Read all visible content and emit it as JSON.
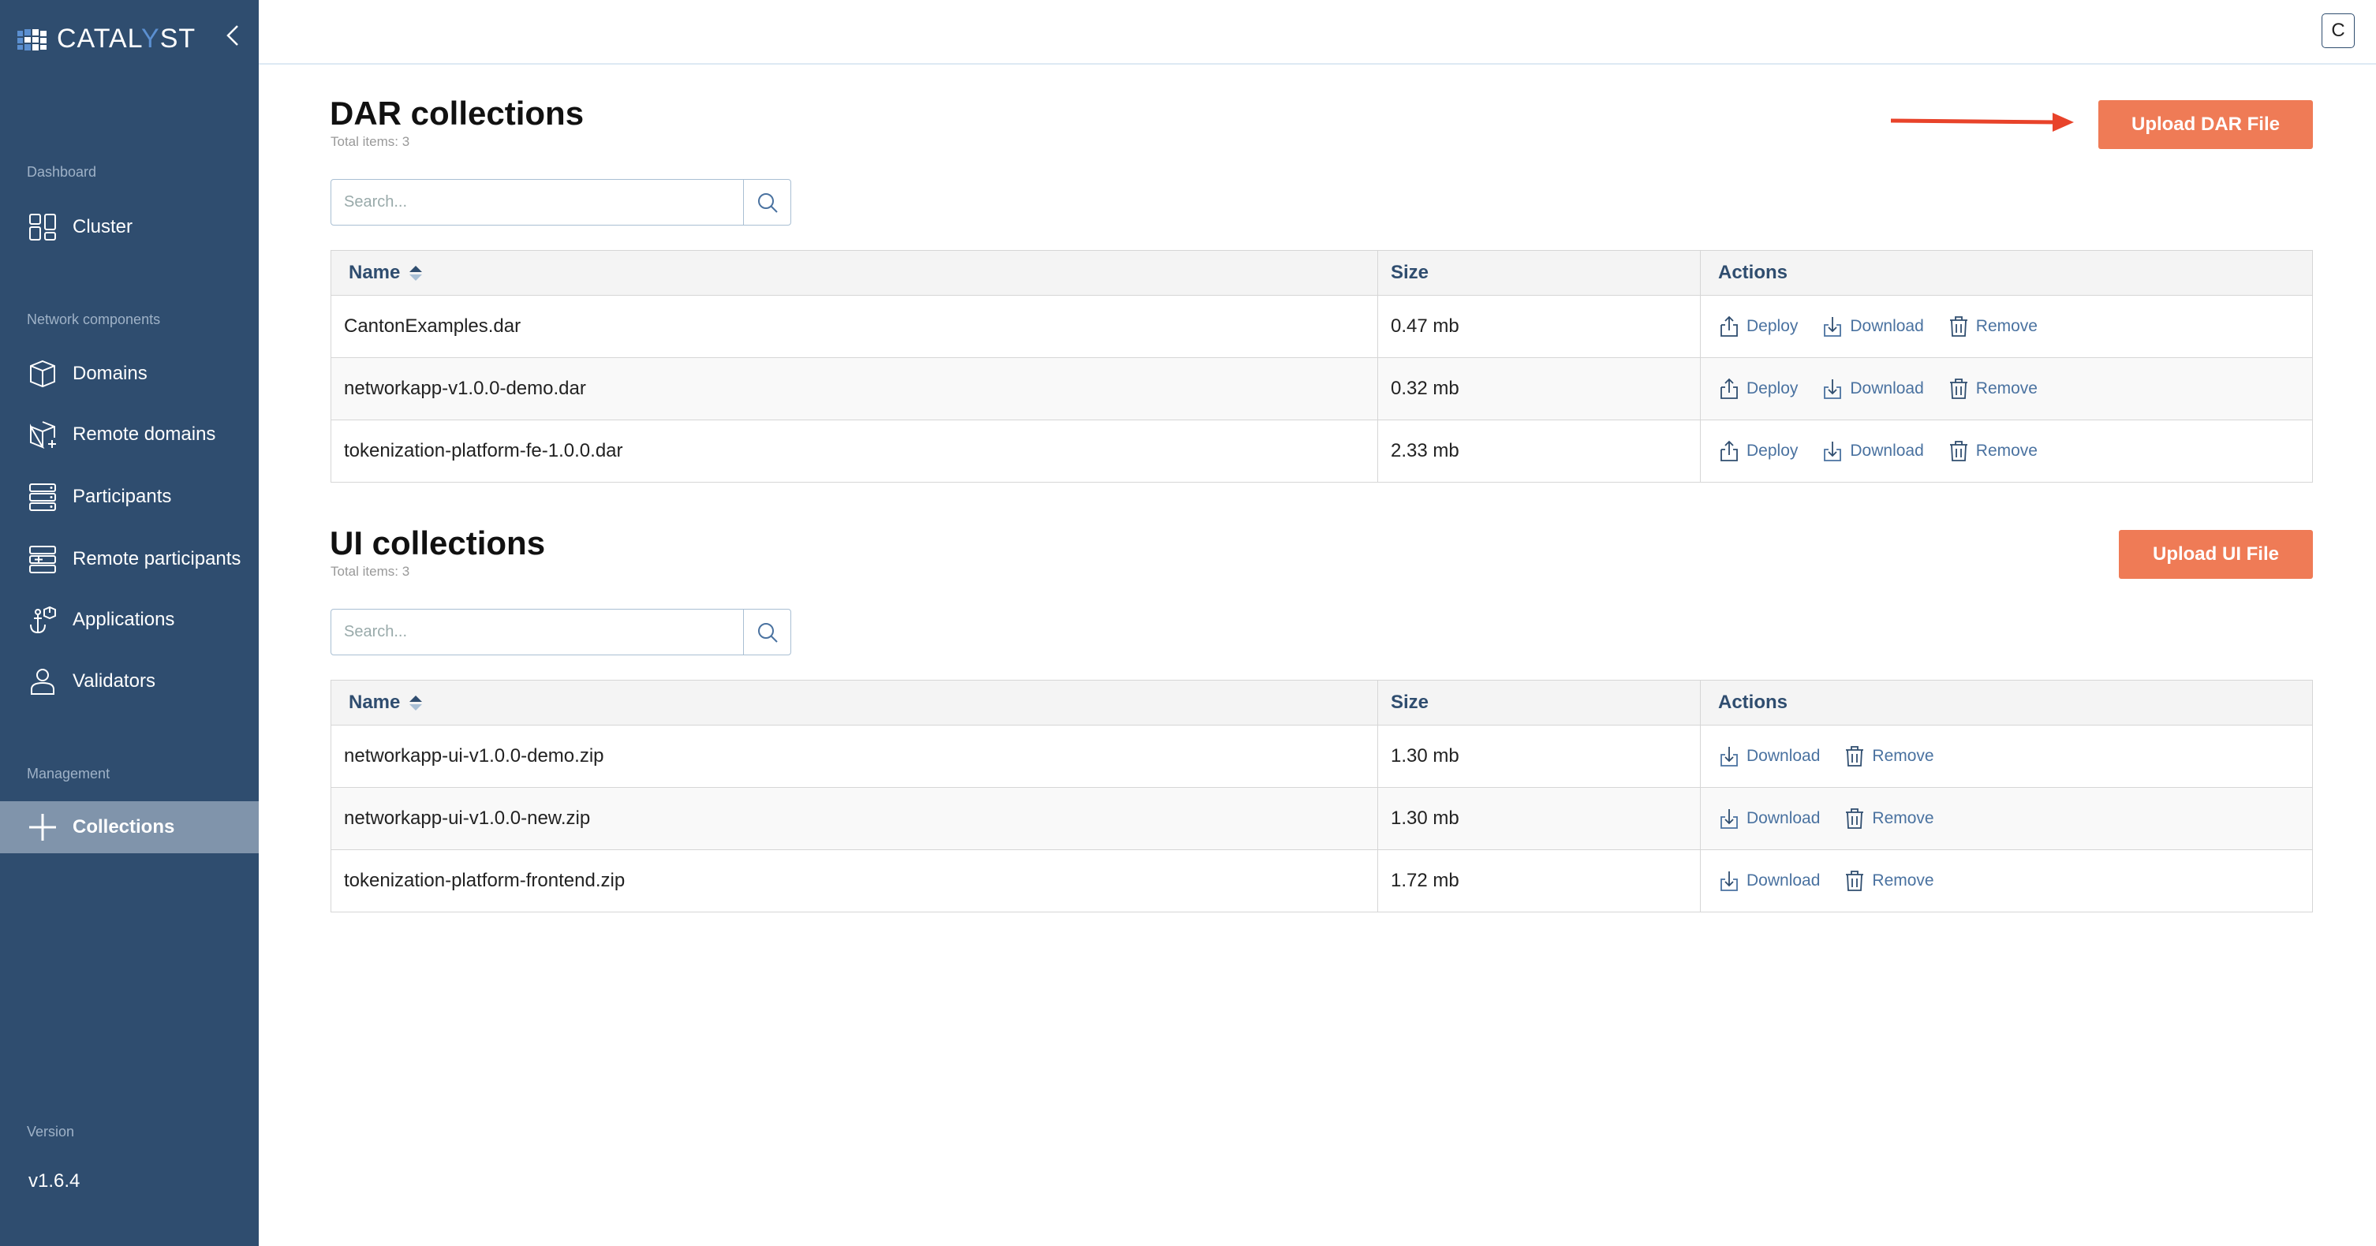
{
  "sidebar": {
    "logo": {
      "text_a": "CATAL",
      "text_y": "Y",
      "text_b": "ST"
    },
    "sections": {
      "dashboard": "Dashboard",
      "network": "Network components",
      "management": "Management",
      "version": "Version"
    },
    "items": [
      {
        "label": "Cluster",
        "icon": "grid-icon"
      },
      {
        "label": "Domains",
        "icon": "cube-icon"
      },
      {
        "label": "Remote domains",
        "icon": "cube-plus-icon"
      },
      {
        "label": "Participants",
        "icon": "server-icon"
      },
      {
        "label": "Remote participants",
        "icon": "server-plus-icon"
      },
      {
        "label": "Applications",
        "icon": "anchor-icon"
      },
      {
        "label": "Validators",
        "icon": "user-icon"
      },
      {
        "label": "Collections",
        "icon": "plus-icon",
        "active": true
      }
    ],
    "version": "v1.6.4"
  },
  "topbar": {
    "user_button": "C"
  },
  "dar": {
    "title": "DAR collections",
    "total": "Total items: 3",
    "upload": "Upload DAR File",
    "search_placeholder": "Search...",
    "headers": {
      "name": "Name",
      "size": "Size",
      "actions": "Actions"
    },
    "rows": [
      {
        "name": "CantonExamples.dar",
        "size": "0.47 mb"
      },
      {
        "name": "networkapp-v1.0.0-demo.dar",
        "size": "0.32 mb"
      },
      {
        "name": "tokenization-platform-fe-1.0.0.dar",
        "size": "2.33 mb"
      }
    ],
    "actions": [
      "Deploy",
      "Download",
      "Remove"
    ]
  },
  "ui": {
    "title": "UI collections",
    "total": "Total items: 3",
    "upload": "Upload UI File",
    "search_placeholder": "Search...",
    "headers": {
      "name": "Name",
      "size": "Size",
      "actions": "Actions"
    },
    "rows": [
      {
        "name": "networkapp-ui-v1.0.0-demo.zip",
        "size": "1.30 mb"
      },
      {
        "name": "networkapp-ui-v1.0.0-new.zip",
        "size": "1.30 mb"
      },
      {
        "name": "tokenization-platform-frontend.zip",
        "size": "1.72 mb"
      }
    ],
    "actions": [
      "Download",
      "Remove"
    ]
  },
  "colors": {
    "sidebar": "#2f4d6f",
    "active": "#8094ab",
    "accent": "#ef7b56",
    "arrow": "#e8432a",
    "link": "#4a72a0"
  }
}
